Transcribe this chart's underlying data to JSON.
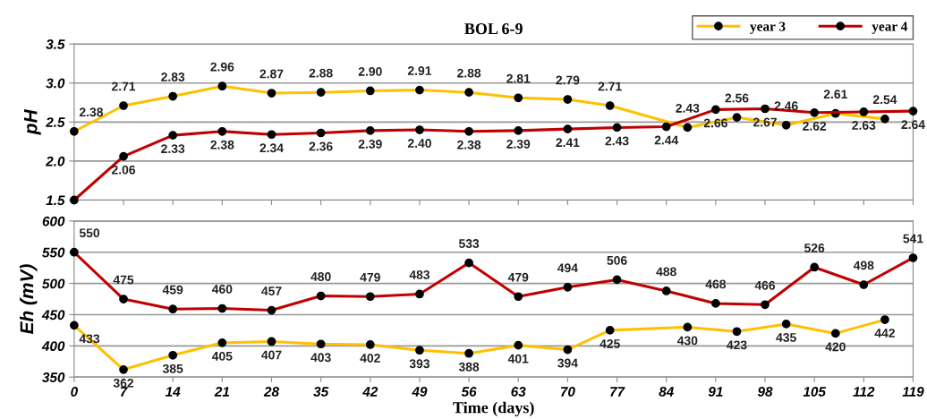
{
  "chart_data": [
    {
      "type": "line",
      "title": "BOL 6-9",
      "ylabel": "pH",
      "xlim": [
        0,
        119
      ],
      "xticks": [
        0,
        7,
        14,
        21,
        28,
        35,
        42,
        49,
        56,
        63,
        70,
        77,
        84,
        91,
        98,
        105,
        112,
        119
      ],
      "ylim": [
        1.5,
        3.5
      ],
      "yticks": [
        1.5,
        {
          "value": 2.0,
          "label": "2.0"
        },
        2.5,
        {
          "value": 3.0,
          "label": "3.0"
        },
        3.5
      ],
      "tick_labels": "y",
      "grid": "y",
      "legend": "top right",
      "marker": "circle",
      "line_style": "solid",
      "series": [
        {
          "name": "year 3",
          "color": "#ffc000",
          "x": [
            0,
            7,
            14,
            21,
            28,
            35,
            42,
            49,
            56,
            63,
            70,
            76,
            87,
            94,
            101,
            108,
            115
          ],
          "values": [
            2.38,
            2.71,
            2.83,
            2.96,
            2.87,
            2.88,
            2.9,
            2.91,
            2.88,
            2.81,
            2.79,
            2.71,
            2.43,
            2.56,
            2.46,
            2.61,
            2.54
          ],
          "value_labels": [
            "2.38",
            "2.71",
            "2.83",
            "2.96",
            "2.87",
            "2.88",
            "2.90",
            "2.91",
            "2.88",
            "2.81",
            "2.79",
            "2.71",
            "2.43",
            "2.56",
            "2.46",
            "2.61",
            "2.54"
          ]
        },
        {
          "name": "year 4",
          "color": "#c00000",
          "x": [
            0,
            7,
            14,
            21,
            28,
            35,
            42,
            49,
            56,
            63,
            70,
            77,
            84,
            91,
            98,
            105,
            112,
            119
          ],
          "values": [
            1.5,
            2.06,
            2.33,
            2.38,
            2.34,
            2.36,
            2.39,
            2.4,
            2.38,
            2.39,
            2.41,
            2.43,
            2.44,
            2.66,
            2.67,
            2.62,
            2.63,
            2.64
          ],
          "value_labels": [
            null,
            "2.06",
            "2.33",
            "2.38",
            "2.34",
            "2.36",
            "2.39",
            "2.40",
            "2.38",
            "2.39",
            "2.41",
            "2.43",
            "2.44",
            "2.66",
            "2.67",
            "2.62",
            "2.63",
            "2.64"
          ]
        }
      ]
    },
    {
      "type": "line",
      "xlabel": "Time (days)",
      "ylabel": "Eh (mV)",
      "xlim": [
        0,
        119
      ],
      "xticks": [
        0,
        7,
        14,
        21,
        28,
        35,
        42,
        49,
        56,
        63,
        70,
        77,
        84,
        91,
        98,
        105,
        112,
        119
      ],
      "ylim": [
        350,
        600
      ],
      "yticks": [
        350,
        400,
        450,
        500,
        550,
        600
      ],
      "grid": "y",
      "marker": "circle",
      "line_style": "solid",
      "series": [
        {
          "color": "#ffc000",
          "x": [
            0,
            7,
            14,
            21,
            28,
            35,
            42,
            49,
            56,
            63,
            70,
            76,
            87,
            94,
            101,
            108,
            115
          ],
          "values": [
            433,
            362,
            385,
            405,
            407,
            403,
            402,
            393,
            388,
            401,
            394,
            425,
            430,
            423,
            435,
            420,
            442
          ],
          "value_labels": [
            "433",
            "362",
            "385",
            "405",
            "407",
            "403",
            "402",
            "393",
            "388",
            "401",
            "394",
            "425",
            "430",
            "423",
            "435",
            "420",
            "442"
          ]
        },
        {
          "color": "#c00000",
          "x": [
            0,
            7,
            14,
            21,
            28,
            35,
            42,
            49,
            56,
            63,
            70,
            77,
            84,
            91,
            98,
            105,
            112,
            119
          ],
          "values": [
            550,
            475,
            459,
            460,
            457,
            480,
            479,
            483,
            533,
            479,
            494,
            506,
            488,
            468,
            466,
            526,
            498,
            541
          ],
          "value_labels": [
            "550",
            "475",
            "459",
            "460",
            "457",
            "480",
            "479",
            "483",
            "533",
            "479",
            "494",
            "506",
            "488",
            "468",
            "466",
            "526",
            "498",
            "541"
          ]
        }
      ]
    }
  ]
}
